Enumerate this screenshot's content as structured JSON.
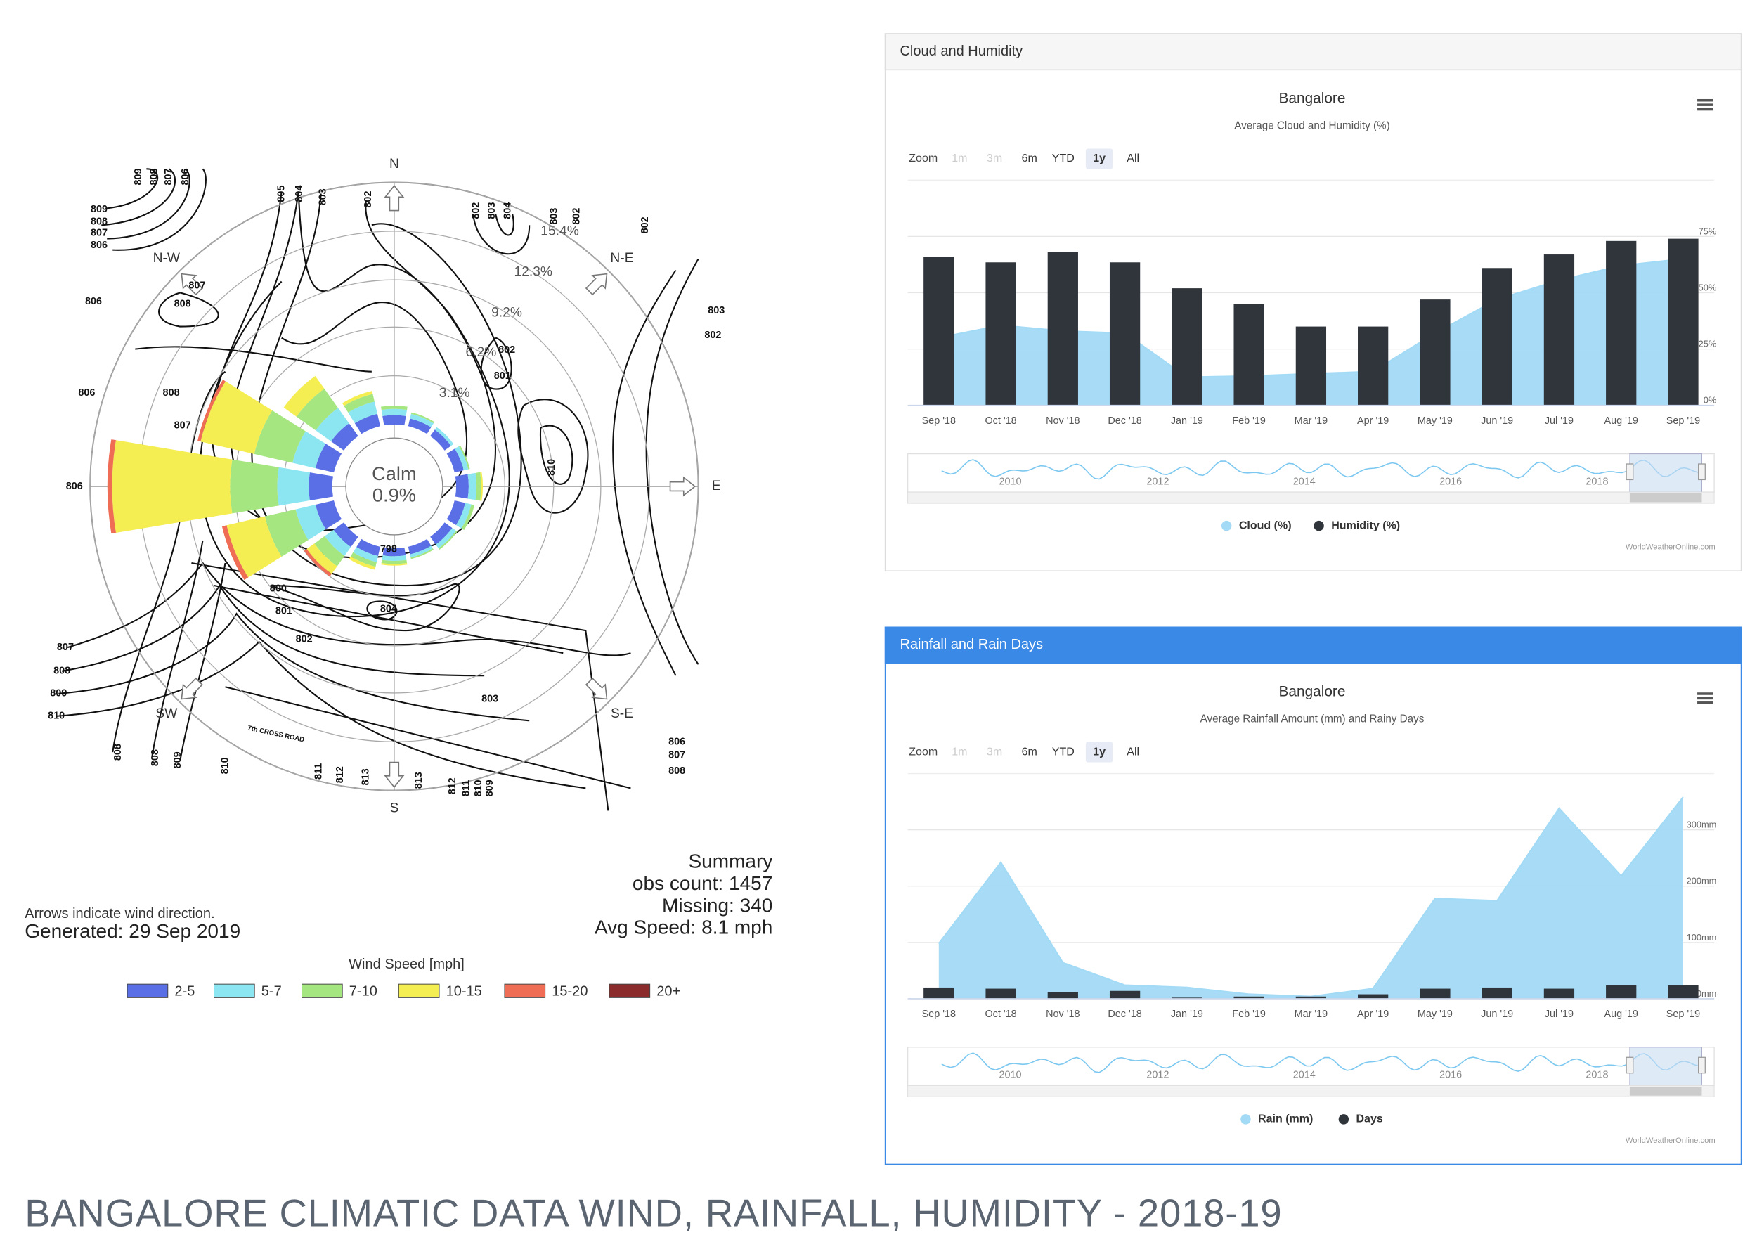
{
  "title": "BANGALORE CLIMATIC DATA WIND, RAINFALL, HUMIDITY - 2018-19",
  "chart_data": [
    {
      "type": "windrose",
      "categories": [
        "N",
        null,
        "N-E",
        null,
        "E",
        null,
        "S-E",
        null,
        "S",
        null,
        "SW",
        null,
        null,
        null,
        "N-W",
        null
      ],
      "series": [
        {
          "name": "2-5",
          "color": "#5a6ee6",
          "values": [
            0.6,
            0.5,
            0.5,
            0.6,
            0.8,
            0.7,
            0.6,
            0.5,
            0.5,
            0.6,
            0.8,
            1.2,
            1.5,
            1.2,
            1.0,
            0.8
          ]
        },
        {
          "name": "5-7",
          "color": "#8ce6f2",
          "values": [
            0.4,
            0.3,
            0.2,
            0.3,
            0.5,
            0.4,
            0.3,
            0.2,
            0.3,
            0.4,
            0.7,
            1.3,
            2.0,
            1.5,
            1.2,
            0.8
          ]
        },
        {
          "name": "7-10",
          "color": "#a6e680",
          "values": [
            0.2,
            0.1,
            0,
            0.1,
            0.3,
            0.2,
            0.1,
            0.1,
            0.2,
            0.3,
            0.8,
            2.0,
            3.0,
            2.5,
            1.5,
            0.5
          ]
        },
        {
          "name": "10-15",
          "color": "#f5ee52",
          "values": [
            0,
            0,
            0,
            0,
            0.1,
            0,
            0,
            0,
            0.1,
            0.2,
            0.6,
            2.5,
            7.5,
            3.5,
            1.0,
            0.2
          ]
        },
        {
          "name": "15-20",
          "color": "#ef6d55",
          "values": [
            0,
            0,
            0,
            0,
            0,
            0,
            0,
            0,
            0,
            0,
            0.2,
            0.3,
            0.3,
            0.2,
            0,
            0
          ]
        },
        {
          "name": "20+",
          "color": "#8b2b2b",
          "values": [
            0,
            0,
            0,
            0,
            0,
            0,
            0,
            0,
            0,
            0,
            0,
            0,
            0,
            0,
            0,
            0
          ]
        }
      ],
      "rlim": [
        0,
        15.4
      ],
      "rticks": [
        {
          "value": 3.1,
          "label": "3.1%"
        },
        {
          "value": 6.2,
          "label": "6.2%"
        },
        {
          "value": 9.2,
          "label": "9.2%"
        },
        {
          "value": 12.3,
          "label": "12.3%"
        },
        {
          "value": 15.4,
          "label": "15.4%"
        }
      ],
      "calm_label": "Calm",
      "calm_value": 0.9,
      "calm_value_label": "0.9%",
      "legend_title": "Wind Speed [mph]",
      "summary": [
        "Summary",
        "obs count: 1457",
        "Missing: 340",
        "Avg Speed: 8.1 mph"
      ],
      "notes": [
        "Arrows indicate wind direction.",
        "Generated: 29 Sep 2019"
      ],
      "road_label": "7th CROSS ROAD",
      "map_labels": [
        "809",
        "808",
        "807",
        "806",
        "809",
        "808",
        "807",
        "806",
        "806",
        "808",
        "807",
        "806",
        "808",
        "807",
        "806",
        "807",
        "808",
        "809",
        "810",
        "808",
        "808",
        "809",
        "810",
        "811",
        "812",
        "813",
        "813",
        "812",
        "811",
        "810",
        "809",
        "806",
        "807",
        "808",
        "803",
        "802",
        "801",
        "800",
        "804",
        "798",
        "810",
        "805",
        "804",
        "803",
        "802",
        "802",
        "803",
        "804",
        "803",
        "802",
        "802",
        "803",
        "802",
        "802",
        "801"
      ]
    },
    {
      "type": "combo",
      "panel_title": "Cloud and Humidity",
      "header_color": "#f6f6f6",
      "header_text_color": "#333333",
      "border_color": "#dddddd",
      "title": "Bangalore",
      "subtitle": "Average Cloud and Humidity (%)",
      "zoom_label": "Zoom",
      "zoom_buttons": [
        "1m",
        "3m",
        "6m",
        "YTD",
        "1y",
        "All"
      ],
      "zoom_selected": 4,
      "categories": [
        "Sep '18",
        "Oct '18",
        "Nov '18",
        "Dec '18",
        "Jan '19",
        "Feb '19",
        "Mar '19",
        "Apr '19",
        "May '19",
        "Jun '19",
        "Jul '19",
        "Aug '19",
        "Sep '19"
      ],
      "series": [
        {
          "name": "Cloud (%)",
          "kind": "area",
          "color": "#a3daf6",
          "values": [
            30,
            35.5,
            33,
            32,
            12.5,
            13,
            14,
            15,
            32,
            47,
            55.5,
            62,
            65
          ]
        },
        {
          "name": "Humidity (%)",
          "kind": "bar",
          "color": "#30353c",
          "values": [
            66,
            63.5,
            68,
            63.5,
            52,
            45,
            35,
            35,
            47,
            61,
            67,
            73,
            74
          ]
        }
      ],
      "ylim": [
        0,
        100
      ],
      "yticks": [
        {
          "value": 0,
          "label": "0%"
        },
        {
          "value": 25,
          "label": "25%"
        },
        {
          "value": 50,
          "label": "50%"
        },
        {
          "value": 75,
          "label": "75%"
        }
      ],
      "navigator_labels": [
        "2010",
        "2012",
        "2014",
        "2016",
        "2018"
      ],
      "credit": "WorldWeatherOnline.com"
    },
    {
      "type": "combo",
      "panel_title": "Rainfall and Rain Days",
      "header_color": "#3a89e6",
      "header_text_color": "#ffffff",
      "border_color": "#3a89e6",
      "title": "Bangalore",
      "subtitle": "Average Rainfall Amount (mm) and Rainy Days",
      "zoom_label": "Zoom",
      "zoom_buttons": [
        "1m",
        "3m",
        "6m",
        "YTD",
        "1y",
        "All"
      ],
      "zoom_selected": 4,
      "categories": [
        "Sep '18",
        "Oct '18",
        "Nov '18",
        "Dec '18",
        "Jan '19",
        "Feb '19",
        "Mar '19",
        "Apr '19",
        "May '19",
        "Jun '19",
        "Jul '19",
        "Aug '19",
        "Sep '19"
      ],
      "series": [
        {
          "name": "Rain (mm)",
          "kind": "area",
          "color": "#a3daf6",
          "values": [
            98,
            242,
            64,
            24,
            20,
            8,
            4,
            18,
            178,
            174,
            338,
            218,
            358
          ]
        },
        {
          "name": "Days",
          "kind": "bar",
          "color": "#30353c",
          "values": [
            20,
            18,
            12,
            14,
            2,
            4,
            4,
            8,
            18,
            20,
            18,
            24,
            24
          ]
        }
      ],
      "ylim": [
        0,
        400
      ],
      "yticks": [
        {
          "value": 0,
          "label": "0mm"
        },
        {
          "value": 100,
          "label": "100mm"
        },
        {
          "value": 200,
          "label": "200mm"
        },
        {
          "value": 300,
          "label": "300mm"
        }
      ],
      "navigator_labels": [
        "2010",
        "2012",
        "2014",
        "2016",
        "2018"
      ],
      "credit": "WorldWeatherOnline.com"
    }
  ]
}
